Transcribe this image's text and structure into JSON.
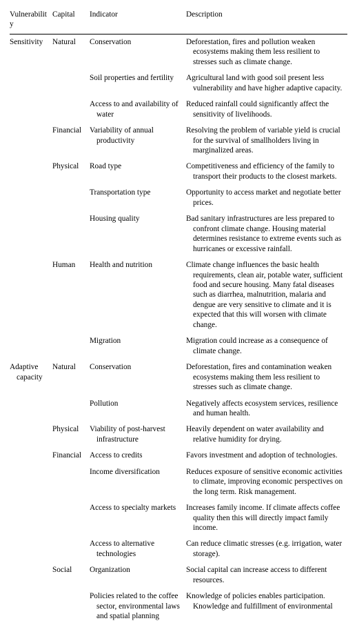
{
  "header": {
    "c1": "Vulnerability",
    "c2": "Capital",
    "c3": "Indicator",
    "c4": "Description"
  },
  "rows": [
    {
      "v": "Sensitivity",
      "cap": "Natural",
      "ind": "Conservation",
      "desc": "Deforestation, fires and pollution weaken ecosystems making them less resilient to stresses such as climate change."
    },
    {
      "v": "",
      "cap": "",
      "ind": "Soil properties and fertility",
      "desc": "Agricultural land with good soil present less vulnerability and have higher adaptive capacity."
    },
    {
      "v": "",
      "cap": "",
      "ind": "Access to and availability of water",
      "desc": "Reduced rainfall could significantly affect the sensitivity of livelihoods."
    },
    {
      "v": "",
      "cap": "Financial",
      "ind": "Variability of annual productivity",
      "desc": "Resolving the problem of variable yield is crucial for the survival of smallholders living in marginalized areas."
    },
    {
      "v": "",
      "cap": "Physical",
      "ind": "Road type",
      "desc": "Competitiveness and efficiency of the family to transport their products to the closest markets."
    },
    {
      "v": "",
      "cap": "",
      "ind": "Transportation type",
      "desc": "Opportunity to access market and negotiate better prices."
    },
    {
      "v": "",
      "cap": "",
      "ind": "Housing quality",
      "desc": "Bad sanitary infrastructures are less prepared to confront climate change. Housing material determines resistance to extreme events such as hurricanes or excessive rainfall."
    },
    {
      "v": "",
      "cap": "Human",
      "ind": "Health and nutrition",
      "desc": "Climate change influences the basic health requirements, clean air, potable water, sufficient food and secure housing. Many fatal diseases such as diarrhea, malnutrition, malaria and dengue are very sensitive to climate and it is expected that this will worsen with climate change."
    },
    {
      "v": "",
      "cap": "",
      "ind": "Migration",
      "desc": "Migration could increase as a consequence of climate change."
    },
    {
      "v": "Adaptive capacity",
      "cap": "Natural",
      "ind": "Conservation",
      "desc": "Deforestation, fires and contamination weaken ecosystems making them less resilient to stresses such as climate change."
    },
    {
      "v": "",
      "cap": "",
      "ind": "Pollution",
      "desc": "Negatively affects ecosystem services, resilience and human health."
    },
    {
      "v": "",
      "cap": "Physical",
      "ind": "Viability of post-harvest infrastructure",
      "desc": "Heavily dependent on water availability and relative humidity for drying."
    },
    {
      "v": "",
      "cap": "Financial",
      "ind": "Access to credits",
      "desc": "Favors investment and adoption of technologies."
    },
    {
      "v": "",
      "cap": "",
      "ind": "Income diversification",
      "desc": "Reduces exposure of sensitive economic activities to climate, improving economic perspectives on the long term. Risk management."
    },
    {
      "v": "",
      "cap": "",
      "ind": "Access to specialty markets",
      "desc": "Increases family income. If climate affects coffee quality then this will directly impact family income."
    },
    {
      "v": "",
      "cap": "",
      "ind": "Access to alternative technologies",
      "desc": "Can reduce climatic stresses (e.g. irrigation, water storage)."
    },
    {
      "v": "",
      "cap": "Social",
      "ind": "Organization",
      "desc": "Social capital can increase access to different resources."
    },
    {
      "v": "",
      "cap": "",
      "ind": "Policies related to the coffee sector, environmental laws and spatial planning",
      "desc": "Knowledge of policies enables participation. Knowledge and fulfillment of environmental"
    }
  ]
}
